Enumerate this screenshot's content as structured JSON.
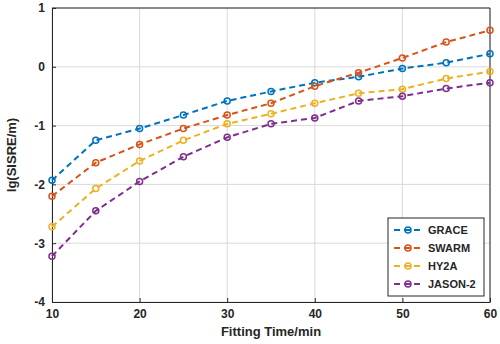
{
  "chart_data": {
    "type": "line",
    "x_label": "Fitting Time/min",
    "y_label": "lg(SISRE/m)",
    "x": [
      10,
      15,
      20,
      25,
      30,
      35,
      40,
      45,
      50,
      55,
      60
    ],
    "xlim": [
      10,
      60
    ],
    "xticks": [
      10,
      20,
      30,
      40,
      50,
      60
    ],
    "ylim": [
      -4,
      1
    ],
    "yticks": [
      -4,
      -3,
      -2,
      -1,
      0,
      1
    ],
    "grid": true,
    "legend": "lower right",
    "marker": "circle",
    "line_style": "dashed",
    "series": [
      {
        "name": "GRACE",
        "color": "#0072BD",
        "values": [
          -1.93,
          -1.25,
          -1.05,
          -0.82,
          -0.58,
          -0.42,
          -0.27,
          -0.17,
          -0.03,
          0.07,
          0.22
        ]
      },
      {
        "name": "SWARM",
        "color": "#D95319",
        "values": [
          -2.2,
          -1.63,
          -1.32,
          -1.05,
          -0.82,
          -0.62,
          -0.33,
          -0.1,
          0.15,
          0.42,
          0.62
        ]
      },
      {
        "name": "HY2A",
        "color": "#EDB120",
        "values": [
          -2.72,
          -2.07,
          -1.6,
          -1.25,
          -0.97,
          -0.8,
          -0.62,
          -0.45,
          -0.38,
          -0.2,
          -0.08
        ]
      },
      {
        "name": "JASON-2",
        "color": "#7E2F8E",
        "values": [
          -3.22,
          -2.45,
          -1.95,
          -1.53,
          -1.2,
          -0.97,
          -0.87,
          -0.58,
          -0.5,
          -0.37,
          -0.27
        ]
      }
    ]
  }
}
